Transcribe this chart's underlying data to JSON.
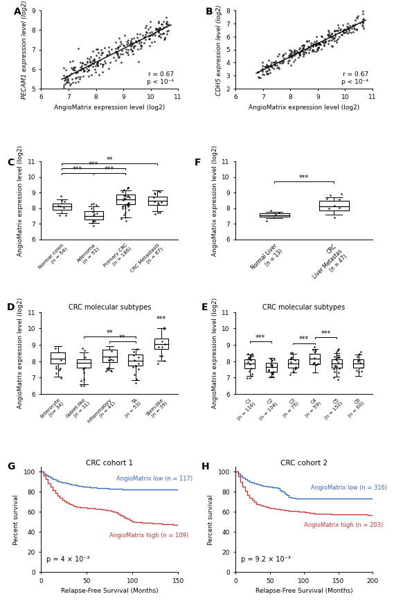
{
  "panel_A": {
    "label": "A",
    "xlabel": "AngioMatrix expression level (log2)",
    "ylabel": "PECAM1 expression level (log2)",
    "xlim": [
      6,
      11
    ],
    "ylim": [
      5,
      9
    ],
    "xticks": [
      6,
      7,
      8,
      9,
      10,
      11
    ],
    "yticks": [
      5,
      6,
      7,
      8,
      9
    ],
    "slope": 0.72,
    "intercept": 0.55,
    "r_text": "r = 0.67",
    "p_text": "p < 10⁻⁴",
    "n_points": 250
  },
  "panel_B": {
    "label": "B",
    "xlabel": "AngioMatrix expression level (log2)",
    "ylabel": "CDH5 expression level (log2)",
    "xlim": [
      6,
      11
    ],
    "ylim": [
      2,
      8
    ],
    "xticks": [
      6,
      7,
      8,
      9,
      10,
      11
    ],
    "yticks": [
      2,
      3,
      4,
      5,
      6,
      7,
      8
    ],
    "slope": 1.0,
    "intercept": -3.5,
    "r_text": "r = 0.67",
    "p_text": "p < 10⁻⁴",
    "n_points": 250
  },
  "panel_C": {
    "label": "C",
    "ylabel": "AngioMatrix expression level (log2)",
    "ylim": [
      6,
      11
    ],
    "yticks": [
      6,
      7,
      8,
      9,
      10,
      11
    ],
    "categories": [
      "Normal colon\n(n = 54)",
      "Adenoma\n(n = 51)",
      "Primary CRC\n(n = 186)",
      "CRC Metastasis\n(n = 67)"
    ],
    "medians": [
      8.1,
      7.5,
      8.55,
      8.45
    ],
    "q1": [
      7.9,
      7.25,
      8.25,
      8.2
    ],
    "q3": [
      8.3,
      7.8,
      8.85,
      8.75
    ],
    "whisker_low": [
      7.65,
      7.05,
      7.4,
      7.8
    ],
    "whisker_high": [
      8.55,
      8.1,
      9.15,
      9.15
    ],
    "n_scatter": [
      8,
      12,
      30,
      12
    ],
    "sig_lines": [
      {
        "x1": 0,
        "x2": 1,
        "y": 10.25,
        "label": "***"
      },
      {
        "x1": 0,
        "x2": 2,
        "y": 10.55,
        "label": "***"
      },
      {
        "x1": 0,
        "x2": 3,
        "y": 10.85,
        "label": "**"
      },
      {
        "x1": 1,
        "x2": 2,
        "y": 10.25,
        "label": "***"
      }
    ]
  },
  "panel_F": {
    "label": "F",
    "ylabel": "AngioMatrix expression level (log2)",
    "ylim": [
      6,
      11
    ],
    "yticks": [
      6,
      7,
      8,
      9,
      10,
      11
    ],
    "categories": [
      "Normal Liver\n(n = 13)",
      "CRC\nLiver Metastas\n(n = 47)"
    ],
    "medians": [
      7.55,
      8.1
    ],
    "q1": [
      7.45,
      7.85
    ],
    "q3": [
      7.65,
      8.45
    ],
    "whisker_low": [
      7.35,
      7.6
    ],
    "whisker_high": [
      7.75,
      8.7
    ],
    "n_scatter": [
      4,
      8
    ],
    "sig_lines": [
      {
        "x1": 0,
        "x2": 1,
        "y": 9.7,
        "label": "***"
      }
    ]
  },
  "panel_D": {
    "label": "D",
    "title": "CRC molecular subtypes",
    "ylabel": "AngioMatrix expression level (log2)",
    "ylim": [
      6,
      11
    ],
    "yticks": [
      6,
      7,
      8,
      9,
      10,
      11
    ],
    "categories": [
      "Enterocyte\n(n= 34)",
      "Goblet-like\n(n = 31)",
      "Inflammatory\n(n = 41)",
      "TA\n(n = 53)",
      "Stem-like\n(n = 39)"
    ],
    "medians": [
      8.15,
      7.9,
      8.3,
      8.05,
      9.05
    ],
    "q1": [
      7.85,
      7.6,
      7.95,
      7.75,
      8.75
    ],
    "q3": [
      8.55,
      8.1,
      8.7,
      8.4,
      9.4
    ],
    "whisker_low": [
      7.05,
      6.6,
      7.55,
      6.85,
      8.05
    ],
    "whisker_high": [
      8.9,
      8.55,
      8.9,
      8.75,
      10.0
    ],
    "n_scatter": [
      8,
      10,
      12,
      14,
      10
    ],
    "sig_lines": [
      {
        "x1": 1,
        "x2": 3,
        "y": 9.5,
        "label": "**"
      },
      {
        "x1": 2,
        "x2": 3,
        "y": 9.2,
        "label": "**"
      },
      {
        "x1": 4,
        "x2": 4,
        "y": 10.35,
        "label": "***",
        "above": true
      }
    ]
  },
  "panel_E": {
    "label": "E",
    "title": "CRC molecular subtypes",
    "ylabel": "AngioMatrix expression level (log2)",
    "ylim": [
      6,
      11
    ],
    "yticks": [
      6,
      7,
      8,
      9,
      10,
      11
    ],
    "categories": [
      "C1\n(n = 116)",
      "C2\n(n = 104)",
      "C3\n(n = 75)",
      "C4\n(n = 59)",
      "C5\n(n = 152)",
      "C6\n(n = 60)"
    ],
    "medians": [
      7.85,
      7.65,
      7.85,
      8.15,
      7.85,
      7.85
    ],
    "q1": [
      7.55,
      7.35,
      7.6,
      7.8,
      7.6,
      7.6
    ],
    "q3": [
      8.1,
      7.9,
      8.1,
      8.45,
      8.1,
      8.1
    ],
    "whisker_low": [
      7.1,
      7.0,
      7.3,
      7.3,
      7.05,
      7.1
    ],
    "whisker_high": [
      8.4,
      8.2,
      8.45,
      8.75,
      8.5,
      8.4
    ],
    "n_scatter": [
      18,
      18,
      12,
      10,
      22,
      12
    ],
    "sig_lines": [
      {
        "x1": 0,
        "x2": 1,
        "y": 9.2,
        "label": "***"
      },
      {
        "x1": 2,
        "x2": 3,
        "y": 9.1,
        "label": "***"
      },
      {
        "x1": 3,
        "x2": 4,
        "y": 9.45,
        "label": "***"
      }
    ]
  },
  "panel_G": {
    "label": "G",
    "title": "CRC cohort 1",
    "xlabel": "Relapse-Free Survival (Months)",
    "ylabel": "Percent survival",
    "xlim": [
      0,
      150
    ],
    "ylim": [
      0,
      105
    ],
    "xticks": [
      0,
      50,
      100,
      150
    ],
    "yticks": [
      0,
      20,
      40,
      60,
      80,
      100
    ],
    "p_text": "p = 4 × 10⁻³",
    "low_label": "AngioMatrix low (n = 117)",
    "high_label": "AngioMatrix high (n = 109)",
    "low_color": "#3366CC",
    "high_color": "#CC3333",
    "low_final": 82,
    "high_final": 47,
    "low_plateau_x": 40,
    "high_plateau_x": 40
  },
  "panel_H": {
    "label": "H",
    "title": "CRC cohort 2",
    "xlabel": "Relapse-Free Survival (Months)",
    "ylabel": "Percent survival",
    "xlim": [
      0,
      200
    ],
    "ylim": [
      0,
      105
    ],
    "xticks": [
      0,
      50,
      100,
      150,
      200
    ],
    "yticks": [
      0,
      20,
      40,
      60,
      80,
      100
    ],
    "p_text": "p = 9.2 × 10⁻³",
    "low_label": "AngioMatrix low (n = 316)",
    "high_label": "AngioMatrix high (n = 203)",
    "low_color": "#3366CC",
    "high_color": "#CC3333",
    "low_final": 73,
    "high_final": 57,
    "low_plateau_x": 30,
    "high_plateau_x": 30
  }
}
